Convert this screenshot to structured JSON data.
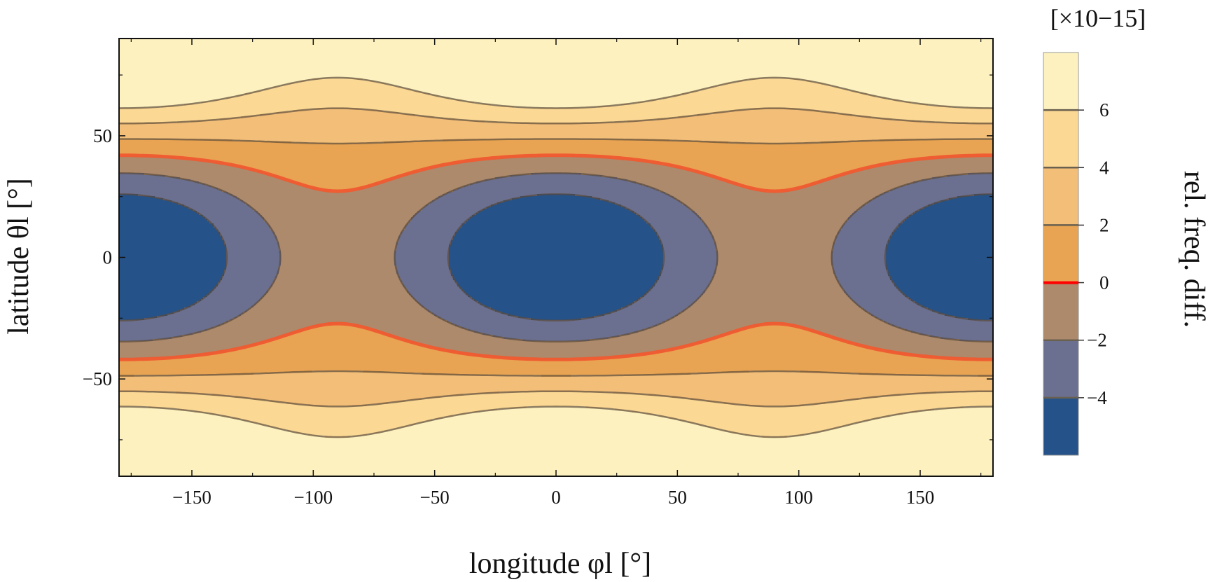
{
  "chart_data": {
    "type": "contour",
    "x": {
      "label": "longitude φl [°]",
      "range": [
        -180,
        180
      ],
      "ticks": [
        -150,
        -100,
        -50,
        0,
        50,
        100,
        150
      ]
    },
    "y": {
      "label": "latitude θl [°]",
      "range": [
        -90,
        90
      ],
      "ticks": [
        50,
        0,
        -50
      ]
    },
    "colorbar": {
      "label": "rel. freq. diff.",
      "unit": "[×10−15]",
      "range": [
        -6,
        8
      ],
      "ticks": [
        {
          "value": 6,
          "label": "6"
        },
        {
          "value": 4,
          "label": "4"
        },
        {
          "value": 2,
          "label": "2"
        },
        {
          "value": 0,
          "label": "0"
        },
        {
          "value": -2,
          "label": "−2"
        },
        {
          "value": -4,
          "label": "−4"
        }
      ],
      "highlight_level": 0
    },
    "levels": [
      -4,
      -2,
      0,
      2,
      4,
      6
    ],
    "bands": [
      {
        "from": -6,
        "to": -4,
        "color": "#255289"
      },
      {
        "from": -4,
        "to": -2,
        "color": "#6b7090"
      },
      {
        "from": -2,
        "to": 0,
        "color": "#ad8a6b"
      },
      {
        "from": 0,
        "to": 2,
        "color": "#e8a452"
      },
      {
        "from": 2,
        "to": 4,
        "color": "#f3be78"
      },
      {
        "from": 4,
        "to": 6,
        "color": "#fbd894"
      },
      {
        "from": 6,
        "to": 8,
        "color": "#fdf2bf"
      }
    ],
    "colors": {
      "contour_line": "#5a4a3a",
      "zero_line": "#f05a30",
      "colorbar_zero": "#ff0000"
    }
  }
}
